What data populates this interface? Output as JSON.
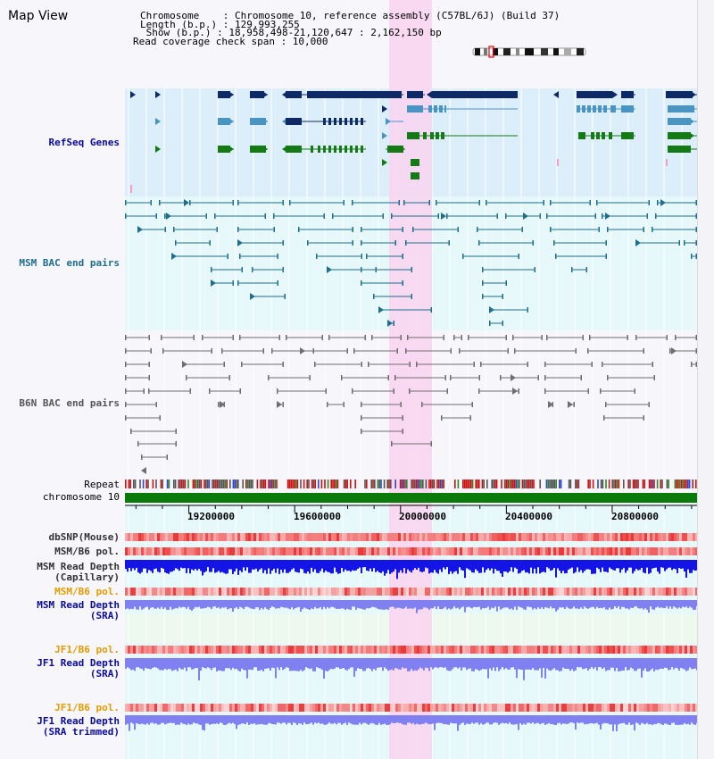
{
  "title": "Map View",
  "info": {
    "chromosome_line": "Chromosome    : Chromosome 10, reference assembly (C57BL/6J) (Build 37)",
    "length_line": "Length (b.p.) : 129,993,255",
    "show_line": " Show (b.p.) : 18,958,498-21,120,647 : 2,162,150 bp",
    "coverage_line": "Read coverage check span : 10,000"
  },
  "tracks": {
    "refseq": "RefSeq Genes",
    "msm_bac": "MSM BAC end pairs",
    "b6n_bac": "B6N BAC end pairs",
    "repeat": "Repeat",
    "chromosome": "chromosome 10",
    "dbsnp": "dbSNP(Mouse)",
    "msm_b6_pol": "MSM/B6 pol.",
    "msm_depth_cap_1": "MSM Read Depth",
    "msm_depth_cap_2": "(Capillary)",
    "msm_b6_pol_sra": "MSM/B6 pol.",
    "msm_depth_sra_1": "MSM Read Depth",
    "msm_depth_sra_2": "(SRA)",
    "jf1_b6_pol": "JF1/B6 pol.",
    "jf1_depth_1": "JF1 Read Depth",
    "jf1_depth_2": "(SRA)",
    "jf1_b6_pol_trim": "JF1/B6 pol.",
    "jf1_depth_trim_1": "JF1 Read Depth",
    "jf1_depth_trim_2": "(SRA trimmed)"
  },
  "ruler": {
    "ticks": [
      "19200000",
      "19600000",
      "20000000",
      "20400000",
      "20800000"
    ],
    "range_start": 18958498,
    "range_end": 21120647
  },
  "colors": {
    "refseq_bg": "#dceefa",
    "bac_bg": "#e6f8fa",
    "highlight": "#f9d4ef",
    "gene_dark": "#0d2a66",
    "gene_mid": "#4a94c4",
    "gene_green": "#157a15",
    "bac_msm": "#1e6e8c",
    "bac_b6n": "#6e6e6e",
    "chromosome_bar": "#0a7a0a",
    "depth_capillary": "#1414e6",
    "depth_sra": "#8080f0",
    "label_blue": "#0a0aa0",
    "label_orange": "#e69a00",
    "label_msm": "#1e6e8c",
    "label_b6n": "#555555"
  }
}
